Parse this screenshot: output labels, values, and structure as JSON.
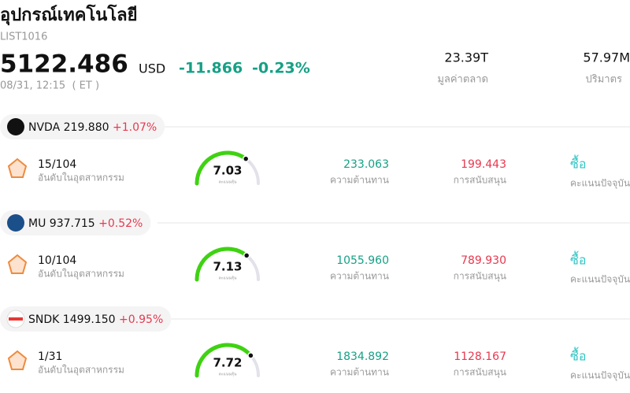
{
  "header": {
    "title": "อุปกรณ์เทคโนโลยี",
    "code": "LIST1016",
    "price": "5122.486",
    "currency": "USD",
    "change": "-11.866",
    "change_pct": "-0.23%",
    "time": "08/31, 12:15  ( ET )",
    "market_cap": {
      "value": "23.39T",
      "label": "มูลค่าตลาด"
    },
    "volume": {
      "value": "57.97M",
      "label": "ปริมาตร"
    }
  },
  "stocks": [
    {
      "ticker": "NVDA",
      "price": "219.880",
      "change": "+1.07%",
      "rank": "15/104",
      "rank_label": "อันดับในอุตสาหกรรม",
      "score": 7.03,
      "score_label": "คะแนนหุ้น",
      "resistance": "233.063",
      "resistance_label": "ความต้านทาน",
      "support": "199.443",
      "support_label": "การสนับสนุน",
      "action": "ซื้อ",
      "action_label": "คะแนนปัจจุบัน"
    },
    {
      "ticker": "MU",
      "price": "937.715",
      "change": "+0.52%",
      "rank": "10/104",
      "rank_label": "อันดับในอุตสาหกรรม",
      "score": 7.13,
      "score_label": "คะแนนหุ้น",
      "resistance": "1055.960",
      "resistance_label": "ความต้านทาน",
      "support": "789.930",
      "support_label": "การสนับสนุน",
      "action": "ซื้อ",
      "action_label": "คะแนนปัจจุบัน"
    },
    {
      "ticker": "SNDK",
      "price": "1499.150",
      "change": "+0.95%",
      "rank": "1/31",
      "rank_label": "อันดับในอุตสาหกรรม",
      "score": 7.72,
      "score_label": "คะแนนหุ้น",
      "resistance": "1834.892",
      "resistance_label": "ความต้านทาน",
      "support": "1128.167",
      "support_label": "การสนับสนุน",
      "action": "ซื้อ",
      "action_label": "คะแนนปัจจุบัน"
    }
  ]
}
